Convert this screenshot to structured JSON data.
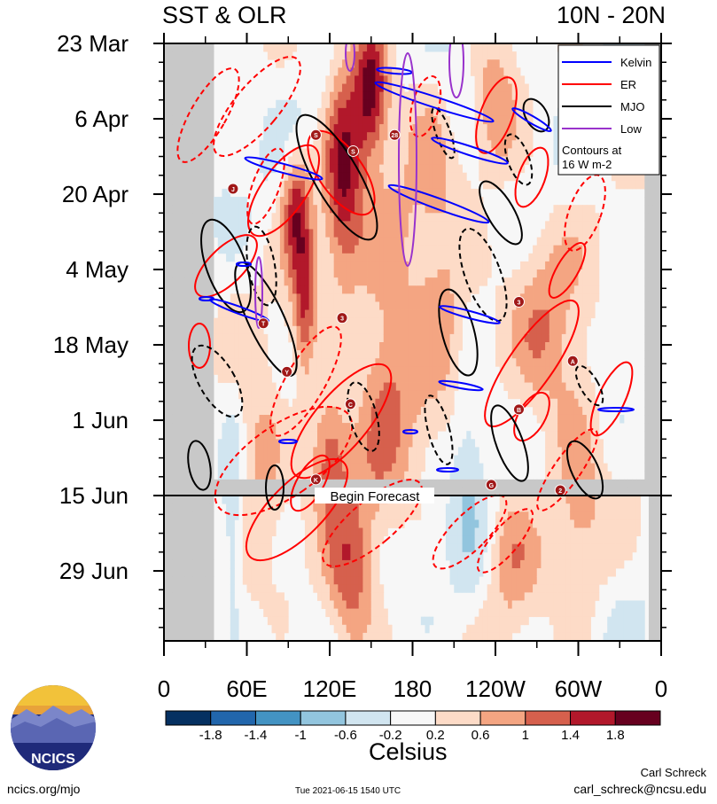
{
  "title_left": "SST & OLR",
  "title_right": "10N - 20N",
  "chart_data": {
    "type": "heatmap",
    "title": "SST & OLR",
    "subtitle": "10N - 20N",
    "x_ticks": [
      "0",
      "60E",
      "120E",
      "180",
      "120W",
      "60W",
      "0"
    ],
    "x_tick_lon": [
      0,
      60,
      120,
      180,
      240,
      300,
      360
    ],
    "y_ticks": [
      "23 Mar",
      "6 Apr",
      "20 Apr",
      "4 May",
      "18 May",
      "1 Jun",
      "15 Jun",
      "29 Jun"
    ],
    "y_tick_day": [
      0,
      14,
      28,
      42,
      56,
      70,
      84,
      98
    ],
    "y_range_days": [
      0,
      111
    ],
    "forecast_day": 84,
    "forecast_label": "Begin Forecast",
    "colorbar": {
      "label": "Celsius",
      "tick_labels": [
        "-1.8",
        "-1.4",
        "-1",
        "-0.6",
        "-0.2",
        "0.2",
        "0.6",
        "1",
        "1.4",
        "1.8"
      ],
      "colors": [
        "#053061",
        "#2166ac",
        "#4393c3",
        "#92c5de",
        "#d1e5f0",
        "#f7f7f7",
        "#fddbc7",
        "#f4a582",
        "#d6604d",
        "#b2182b",
        "#67001f"
      ]
    },
    "legend": {
      "position": "top-right",
      "items": [
        {
          "name": "Kelvin",
          "color": "#0000ff"
        },
        {
          "name": "ER",
          "color": "#ff0000"
        },
        {
          "name": "MJO",
          "color": "#000000"
        },
        {
          "name": "Low",
          "color": "#9933cc"
        }
      ],
      "note_line1": "Contours at",
      "note_line2": "16 W m-2"
    },
    "storm_markers": [
      {
        "label": "J",
        "lon": 50,
        "day": 27
      },
      {
        "label": "S",
        "lon": 110,
        "day": 17
      },
      {
        "label": "S",
        "lon": 137,
        "day": 20
      },
      {
        "label": "28",
        "lon": 167,
        "day": 17
      },
      {
        "label": "3",
        "lon": 129,
        "day": 51
      },
      {
        "label": "T",
        "lon": 72,
        "day": 52
      },
      {
        "label": "Y",
        "lon": 89,
        "day": 61
      },
      {
        "label": "C",
        "lon": 135,
        "day": 67
      },
      {
        "label": "K",
        "lon": 110,
        "day": 81
      },
      {
        "label": "B",
        "lon": 257,
        "day": 68
      },
      {
        "label": "G",
        "lon": 237,
        "day": 82
      },
      {
        "label": "2",
        "lon": 287,
        "day": 83
      },
      {
        "label": "A",
        "lon": 296,
        "day": 59
      },
      {
        "label": "3",
        "lon": 257,
        "day": 48
      }
    ]
  },
  "footer": {
    "logo_text": "NCICS",
    "url": "ncics.org/mjo",
    "timestamp": "Tue 2021-06-15 1540 UTC",
    "author": "Carl Schreck",
    "email": "carl_schreck@ncsu.edu"
  }
}
